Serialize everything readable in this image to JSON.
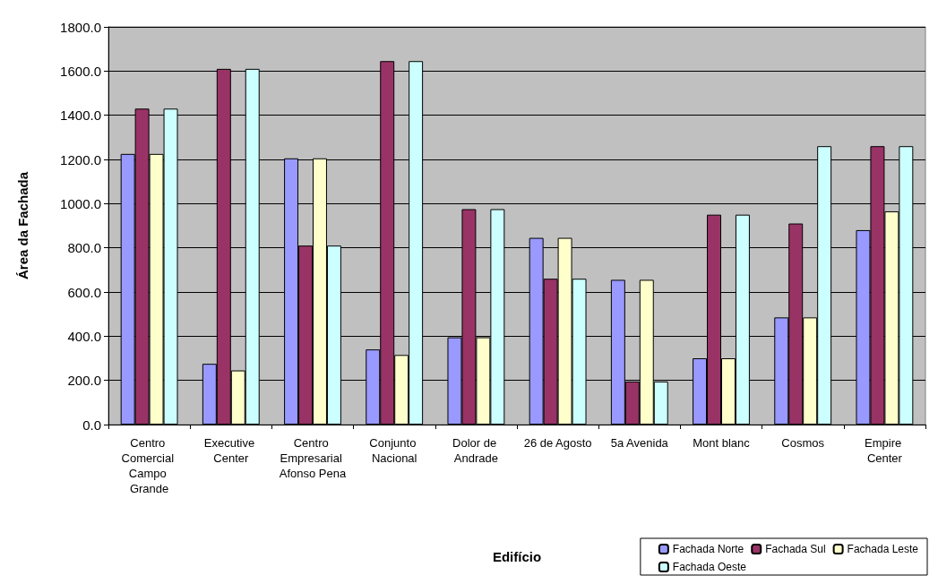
{
  "chart_data": {
    "type": "bar",
    "xlabel": "Edifício",
    "ylabel": "Área da Fachada",
    "categories": [
      "Centro Comercial Campo Grande",
      "Executive Center",
      "Centro Empresarial Afonso Pena",
      "Conjunto Nacional",
      "Dolor de Andrade",
      "26 de Agosto",
      "5a Avenida",
      "Mont blanc",
      "Cosmos",
      "Empire Center"
    ],
    "series": [
      {
        "name": "Fachada Norte",
        "color": "#9999ff",
        "values": [
          1225,
          275,
          1205,
          340,
          395,
          845,
          655,
          300,
          485,
          880
        ]
      },
      {
        "name": "Fachada Sul",
        "color": "#993366",
        "values": [
          1430,
          1610,
          810,
          1645,
          975,
          660,
          195,
          950,
          910,
          1260
        ]
      },
      {
        "name": "Fachada Leste",
        "color": "#ffffcc",
        "values": [
          1225,
          245,
          1205,
          315,
          395,
          845,
          655,
          300,
          485,
          965
        ]
      },
      {
        "name": "Fachada Oeste",
        "color": "#ccffff",
        "values": [
          1430,
          1610,
          810,
          1645,
          975,
          660,
          195,
          950,
          1260,
          1260
        ]
      }
    ],
    "ylim": [
      0,
      1800
    ],
    "yticks": [
      {
        "value": 0,
        "label": "0.0"
      },
      {
        "value": 200,
        "label": "200.0"
      },
      {
        "value": 400,
        "label": "400.0"
      },
      {
        "value": 600,
        "label": "600.0"
      },
      {
        "value": 800,
        "label": "800.0"
      },
      {
        "value": 1000,
        "label": "1000.0"
      },
      {
        "value": 1200,
        "label": "1200.0"
      },
      {
        "value": 1400,
        "label": "1400.0"
      },
      {
        "value": 1600,
        "label": "1600.0"
      },
      {
        "value": 1800,
        "label": "1800.0"
      }
    ],
    "grid": "y",
    "legend": "bottom right"
  }
}
